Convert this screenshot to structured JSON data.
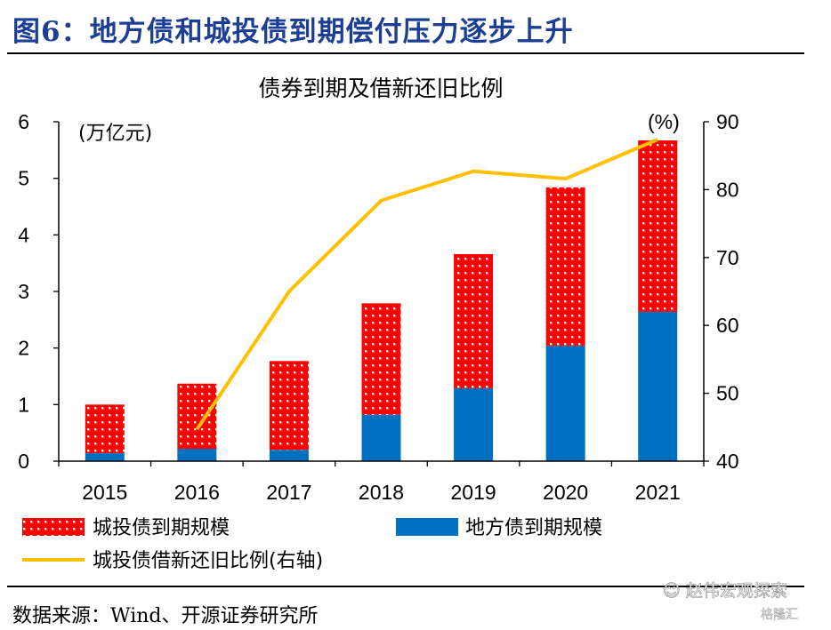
{
  "figure_title": "图6：地方债和城投债到期偿付压力逐步上升",
  "source": "数据来源：Wind、开源证券研究所",
  "watermark": "赵伟宏观探索",
  "watermark_logo": "格隆汇",
  "colors": {
    "title": "#1c3f94",
    "chengtou": "#ff0000",
    "difang": "#0070c0",
    "ratio_line": "#ffc000"
  },
  "chart_data": {
    "type": "bar",
    "stacked": true,
    "title": "债券到期及借新还旧比例",
    "categories": [
      "2015",
      "2016",
      "2017",
      "2018",
      "2019",
      "2020",
      "2021"
    ],
    "left_axis": {
      "label": "(万亿元)",
      "ylim": [
        0,
        6
      ],
      "ticks": [
        "0",
        "1",
        "2",
        "3",
        "4",
        "5",
        "6"
      ]
    },
    "right_axis": {
      "label": "(%)",
      "ylim": [
        40,
        90
      ],
      "ticks": [
        "40",
        "50",
        "60",
        "70",
        "80",
        "90"
      ]
    },
    "grid": false,
    "legend_position": "bottom",
    "series": [
      {
        "name": "地方债到期规模",
        "type": "bar",
        "axis": "left",
        "values": [
          0.14,
          0.22,
          0.2,
          0.82,
          1.29,
          2.04,
          2.64
        ]
      },
      {
        "name": "城投债到期规模",
        "type": "bar",
        "axis": "left",
        "pattern": "dotted",
        "values": [
          0.86,
          1.15,
          1.57,
          1.97,
          2.37,
          2.8,
          3.03
        ]
      },
      {
        "name": "城投债借新还旧比例(右轴)",
        "type": "line",
        "axis": "right",
        "values": [
          null,
          44.7,
          65.0,
          78.4,
          82.7,
          81.6,
          87.4
        ]
      }
    ]
  }
}
